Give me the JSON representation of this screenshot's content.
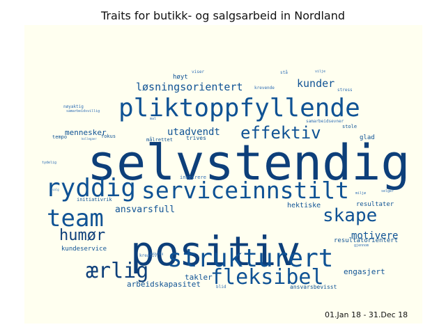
{
  "title": "Traits for butikk- og salgsarbeid in Nordland",
  "date_range": "01.Jan 18 - 31.Dec 18",
  "colors": {
    "background": "#fffff0",
    "dark": "#0d3f7a",
    "mid": "#0f5294",
    "light": "#2e6db4"
  },
  "words": [
    {
      "text": "selvstendig"
    },
    {
      "text": "positiv"
    },
    {
      "text": "pliktoppfyllende"
    },
    {
      "text": "strukturert"
    },
    {
      "text": "serviceinnstilt"
    },
    {
      "text": "ryddig"
    },
    {
      "text": "team"
    },
    {
      "text": "fleksibel"
    },
    {
      "text": "ærlig"
    },
    {
      "text": "effektiv"
    },
    {
      "text": "skape"
    },
    {
      "text": "humør"
    },
    {
      "text": "løsningsorientert"
    },
    {
      "text": "utadvendt"
    },
    {
      "text": "kunder"
    },
    {
      "text": "motivere"
    },
    {
      "text": "ansvarsfull"
    },
    {
      "text": "mennesker"
    },
    {
      "text": "hektiske"
    },
    {
      "text": "arbeidskapasitet"
    },
    {
      "text": "engasjert"
    },
    {
      "text": "takler"
    },
    {
      "text": "kundeservice"
    },
    {
      "text": "resultater"
    },
    {
      "text": "resultatorientert"
    },
    {
      "text": "ansvarsbevisst"
    },
    {
      "text": "glad"
    },
    {
      "text": "høyt"
    },
    {
      "text": "trives"
    },
    {
      "text": "målrettet"
    },
    {
      "text": "initiativrik"
    },
    {
      "text": "inspirere"
    },
    {
      "text": "kreativ"
    },
    {
      "text": "samarbeidsevner"
    },
    {
      "text": "stress"
    },
    {
      "text": "krevende"
    },
    {
      "text": "nøyaktig"
    },
    {
      "text": "fokus"
    },
    {
      "text": "tempo"
    },
    {
      "text": "stole"
    },
    {
      "text": "viser"
    },
    {
      "text": "stå"
    },
    {
      "text": "vilje"
    },
    {
      "text": "samarbeidsvillig"
    },
    {
      "text": "gjennom"
    },
    {
      "text": "selger"
    },
    {
      "text": "miljø"
    },
    {
      "text": "salg"
    },
    {
      "text": "tydelig"
    },
    {
      "text": "kollegaer"
    },
    {
      "text": "blid"
    },
    {
      "text": "mal"
    },
    {
      "text": "folkelig"
    }
  ]
}
